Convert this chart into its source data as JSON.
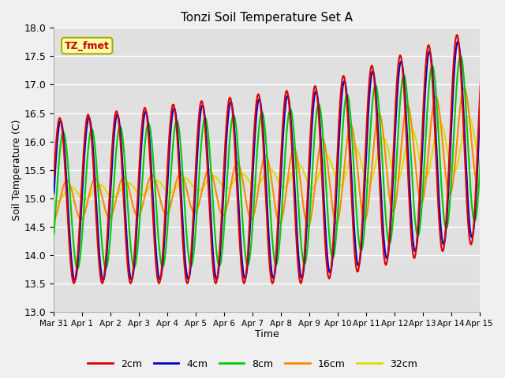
{
  "title": "Tonzi Soil Temperature Set A",
  "xlabel": "Time",
  "ylabel": "Soil Temperature (C)",
  "ylim": [
    13.0,
    18.0
  ],
  "yticks": [
    13.0,
    13.5,
    14.0,
    14.5,
    15.0,
    15.5,
    16.0,
    16.5,
    17.0,
    17.5,
    18.0
  ],
  "xtick_labels": [
    "Mar 31",
    "Apr 1",
    "Apr 2",
    "Apr 3",
    "Apr 4",
    "Apr 5",
    "Apr 6",
    "Apr 7",
    "Apr 8",
    "Apr 9",
    "Apr 10",
    "Apr 11",
    "Apr 12",
    "Apr 13",
    "Apr 14",
    "Apr 15"
  ],
  "colors": {
    "2cm": "#dd0000",
    "4cm": "#0000cc",
    "8cm": "#00cc00",
    "16cm": "#ff8800",
    "32cm": "#dddd00"
  },
  "legend_labels": [
    "2cm",
    "4cm",
    "8cm",
    "16cm",
    "32cm"
  ],
  "annotation_text": "TZ_fmet",
  "annotation_color": "#cc0000",
  "annotation_bg": "#ffffaa",
  "annotation_border": "#aaaa00",
  "fig_bg": "#f0f0f0",
  "plot_bg": "#e0e0e0",
  "n_points": 1000
}
